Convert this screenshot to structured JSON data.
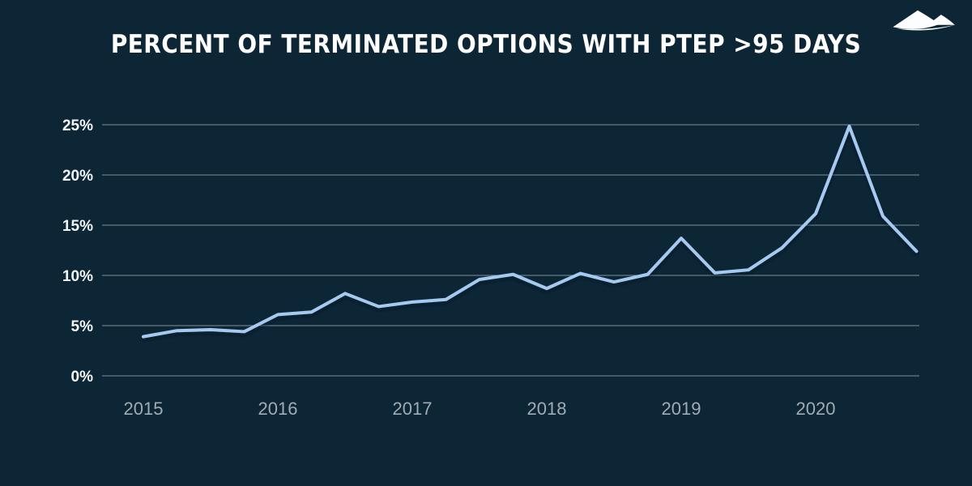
{
  "page": {
    "background_color": "#0d2636"
  },
  "header": {
    "title": "PERCENT OF TERMINATED OPTIONS WITH PTEP >95 DAYS",
    "logo_icon": "dunes-logo-icon"
  },
  "chart_data": {
    "type": "line",
    "title": "PERCENT OF TERMINATED OPTIONS WITH PTEP >95 DAYS",
    "x": [
      "2015 Q1",
      "2015 Q2",
      "2015 Q3",
      "2015 Q4",
      "2016 Q1",
      "2016 Q2",
      "2016 Q3",
      "2016 Q4",
      "2017 Q1",
      "2017 Q2",
      "2017 Q3",
      "2017 Q4",
      "2018 Q1",
      "2018 Q2",
      "2018 Q3",
      "2018 Q4",
      "2019 Q1",
      "2019 Q2",
      "2019 Q3",
      "2019 Q4",
      "2020 Q1",
      "2020 Q2",
      "2020 Q3",
      "2020 Q4"
    ],
    "values": [
      3.9,
      4.5,
      4.6,
      4.4,
      6.1,
      6.35,
      8.2,
      6.9,
      7.35,
      7.6,
      9.6,
      10.1,
      8.7,
      10.2,
      9.35,
      10.1,
      13.7,
      10.25,
      10.55,
      12.75,
      16.15,
      24.85,
      15.9,
      12.4
    ],
    "x_tick_labels": [
      "2015",
      "2016",
      "2017",
      "2018",
      "2019",
      "2020"
    ],
    "y_tick_labels": [
      "0%",
      "5%",
      "10%",
      "15%",
      "20%",
      "25%"
    ],
    "ylim": [
      0,
      25
    ],
    "grid": "horizontal",
    "legend": "none",
    "colors": {
      "line": "#a6c9f2",
      "gridline": "#95a2ac",
      "y_label": "#f2f5f7",
      "x_label": "#9fabb6",
      "title": "#ffffff",
      "background": "#0d2636",
      "logo": "#fbfdfe"
    }
  }
}
